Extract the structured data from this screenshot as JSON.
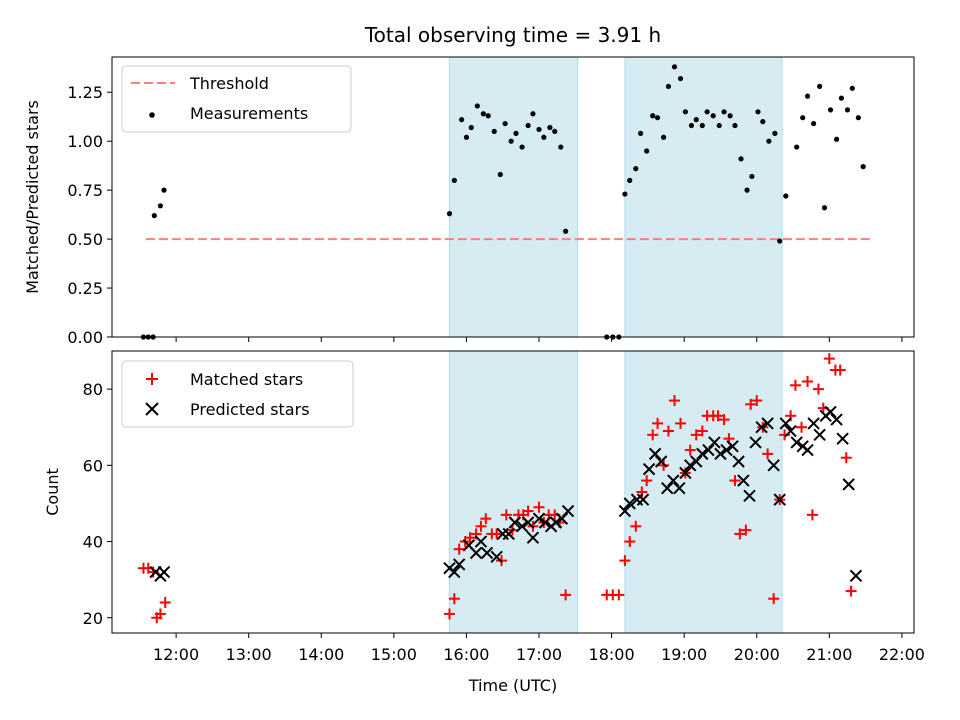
{
  "chart_data": [
    {
      "type": "scatter",
      "title": "Total observing time = 3.91 h",
      "ylabel": "Matched/Predicted stars",
      "xlabel": "",
      "ylim": [
        0,
        1.43
      ],
      "yticks": [
        "0.00",
        "0.25",
        "0.50",
        "0.75",
        "1.00",
        "1.25"
      ],
      "legend": {
        "placement": "upper-left",
        "entries": [
          {
            "key": "threshold",
            "label": "Threshold"
          },
          {
            "key": "measurements",
            "label": "Measurements"
          }
        ]
      },
      "threshold": {
        "value": 0.5,
        "x_start": "11:35",
        "x_end": "21:35",
        "color": "#ff7f7f",
        "style": "dashed"
      },
      "measurements": {
        "color": "#000000",
        "points": [
          [
            "11:33",
            0.0
          ],
          [
            "11:37",
            0.0
          ],
          [
            "11:41",
            0.0
          ],
          [
            "11:42",
            0.62
          ],
          [
            "11:47",
            0.67
          ],
          [
            "11:50",
            0.75
          ],
          [
            "15:46",
            0.63
          ],
          [
            "15:50",
            0.8
          ],
          [
            "15:56",
            1.11
          ],
          [
            "16:00",
            1.02
          ],
          [
            "16:04",
            1.07
          ],
          [
            "16:09",
            1.18
          ],
          [
            "16:14",
            1.14
          ],
          [
            "16:18",
            1.13
          ],
          [
            "16:23",
            1.05
          ],
          [
            "16:28",
            0.83
          ],
          [
            "16:32",
            1.09
          ],
          [
            "16:37",
            1.0
          ],
          [
            "16:41",
            1.04
          ],
          [
            "16:46",
            0.97
          ],
          [
            "16:51",
            1.08
          ],
          [
            "16:55",
            1.14
          ],
          [
            "17:00",
            1.06
          ],
          [
            "17:04",
            1.02
          ],
          [
            "17:09",
            1.07
          ],
          [
            "17:13",
            1.05
          ],
          [
            "17:18",
            0.97
          ],
          [
            "17:22",
            0.54
          ],
          [
            "17:56",
            0.0
          ],
          [
            "18:01",
            0.0
          ],
          [
            "18:06",
            0.0
          ],
          [
            "18:11",
            0.73
          ],
          [
            "18:15",
            0.8
          ],
          [
            "18:20",
            0.86
          ],
          [
            "18:24",
            1.04
          ],
          [
            "18:29",
            0.95
          ],
          [
            "18:34",
            1.13
          ],
          [
            "18:38",
            1.12
          ],
          [
            "18:43",
            1.02
          ],
          [
            "18:47",
            1.28
          ],
          [
            "18:52",
            1.38
          ],
          [
            "18:57",
            1.32
          ],
          [
            "19:01",
            1.15
          ],
          [
            "19:06",
            1.08
          ],
          [
            "19:10",
            1.11
          ],
          [
            "19:15",
            1.08
          ],
          [
            "19:19",
            1.15
          ],
          [
            "19:24",
            1.13
          ],
          [
            "19:29",
            1.08
          ],
          [
            "19:33",
            1.15
          ],
          [
            "19:38",
            1.13
          ],
          [
            "19:42",
            1.08
          ],
          [
            "19:47",
            0.91
          ],
          [
            "19:52",
            0.75
          ],
          [
            "19:56",
            0.82
          ],
          [
            "20:01",
            1.15
          ],
          [
            "20:05",
            1.1
          ],
          [
            "20:10",
            1.0
          ],
          [
            "20:15",
            1.04
          ],
          [
            "20:19",
            0.49
          ],
          [
            "20:24",
            0.72
          ],
          [
            "20:33",
            0.97
          ],
          [
            "20:38",
            1.12
          ],
          [
            "20:42",
            1.23
          ],
          [
            "20:47",
            1.09
          ],
          [
            "20:52",
            1.28
          ],
          [
            "20:56",
            0.66
          ],
          [
            "21:01",
            1.16
          ],
          [
            "21:06",
            1.01
          ],
          [
            "21:10",
            1.22
          ],
          [
            "21:15",
            1.16
          ],
          [
            "21:19",
            1.27
          ],
          [
            "21:24",
            1.12
          ],
          [
            "21:28",
            0.87
          ]
        ]
      }
    },
    {
      "type": "scatter",
      "title": "",
      "ylabel": "Count",
      "xlabel": "Time (UTC)",
      "ylim": [
        16,
        90
      ],
      "yticks": [
        "20",
        "40",
        "60",
        "80"
      ],
      "legend": {
        "placement": "upper-left",
        "entries": [
          {
            "key": "matched",
            "label": "Matched stars"
          },
          {
            "key": "predicted",
            "label": "Predicted stars"
          }
        ]
      },
      "series": [
        {
          "name": "Matched stars",
          "key": "matched",
          "marker": "+",
          "color": "#ff0000",
          "points": [
            [
              "11:33",
              33
            ],
            [
              "11:37",
              33
            ],
            [
              "11:41",
              32
            ],
            [
              "11:44",
              20
            ],
            [
              "11:47",
              21
            ],
            [
              "11:51",
              24
            ],
            [
              "15:46",
              21
            ],
            [
              "15:50",
              25
            ],
            [
              "15:54",
              38
            ],
            [
              "15:59",
              40
            ],
            [
              "16:03",
              41
            ],
            [
              "16:08",
              42
            ],
            [
              "16:12",
              44
            ],
            [
              "16:16",
              46
            ],
            [
              "16:21",
              42
            ],
            [
              "16:25",
              42
            ],
            [
              "16:29",
              35
            ],
            [
              "16:33",
              47
            ],
            [
              "16:38",
              43
            ],
            [
              "16:43",
              47
            ],
            [
              "16:47",
              47
            ],
            [
              "16:51",
              48
            ],
            [
              "16:55",
              44
            ],
            [
              "17:00",
              49
            ],
            [
              "17:04",
              45
            ],
            [
              "17:08",
              47
            ],
            [
              "17:13",
              47
            ],
            [
              "17:17",
              45
            ],
            [
              "17:22",
              26
            ],
            [
              "17:56",
              26
            ],
            [
              "18:01",
              26
            ],
            [
              "18:06",
              26
            ],
            [
              "18:11",
              35
            ],
            [
              "18:15",
              40
            ],
            [
              "18:20",
              44
            ],
            [
              "18:25",
              53
            ],
            [
              "18:29",
              56
            ],
            [
              "18:34",
              68
            ],
            [
              "18:38",
              71
            ],
            [
              "18:43",
              60
            ],
            [
              "18:47",
              69
            ],
            [
              "18:52",
              77
            ],
            [
              "18:57",
              71
            ],
            [
              "19:01",
              58
            ],
            [
              "19:05",
              64
            ],
            [
              "19:10",
              68
            ],
            [
              "19:15",
              69
            ],
            [
              "19:19",
              73
            ],
            [
              "19:24",
              73
            ],
            [
              "19:28",
              73
            ],
            [
              "19:33",
              72
            ],
            [
              "19:37",
              67
            ],
            [
              "19:42",
              56
            ],
            [
              "19:46",
              42
            ],
            [
              "19:51",
              43
            ],
            [
              "19:55",
              76
            ],
            [
              "20:00",
              77
            ],
            [
              "20:05",
              70
            ],
            [
              "20:09",
              63
            ],
            [
              "20:14",
              25
            ],
            [
              "20:19",
              51
            ],
            [
              "20:23",
              68
            ],
            [
              "20:28",
              73
            ],
            [
              "20:32",
              81
            ],
            [
              "20:37",
              70
            ],
            [
              "20:42",
              82
            ],
            [
              "20:46",
              47
            ],
            [
              "20:51",
              80
            ],
            [
              "20:55",
              75
            ],
            [
              "21:00",
              88
            ],
            [
              "21:05",
              85
            ],
            [
              "21:09",
              85
            ],
            [
              "21:14",
              62
            ],
            [
              "21:18",
              27
            ]
          ]
        },
        {
          "name": "Predicted stars",
          "key": "predicted",
          "marker": "x",
          "color": "#000000",
          "points": [
            [
              "11:43",
              32
            ],
            [
              "11:47",
              31
            ],
            [
              "11:50",
              32
            ],
            [
              "15:46",
              33
            ],
            [
              "15:50",
              32
            ],
            [
              "15:54",
              34
            ],
            [
              "16:02",
              39
            ],
            [
              "16:08",
              37
            ],
            [
              "16:12",
              40
            ],
            [
              "16:17",
              37
            ],
            [
              "16:25",
              36
            ],
            [
              "16:30",
              42
            ],
            [
              "16:35",
              42
            ],
            [
              "16:40",
              45
            ],
            [
              "16:46",
              44
            ],
            [
              "16:51",
              45
            ],
            [
              "16:55",
              41
            ],
            [
              "17:00",
              46
            ],
            [
              "17:05",
              45
            ],
            [
              "17:10",
              44
            ],
            [
              "17:14",
              45
            ],
            [
              "17:19",
              46
            ],
            [
              "17:24",
              48
            ],
            [
              "18:11",
              48
            ],
            [
              "18:15",
              50
            ],
            [
              "18:21",
              51
            ],
            [
              "18:26",
              51
            ],
            [
              "18:31",
              59
            ],
            [
              "18:36",
              63
            ],
            [
              "18:41",
              61
            ],
            [
              "18:46",
              54
            ],
            [
              "18:51",
              56
            ],
            [
              "18:56",
              54
            ],
            [
              "19:01",
              58
            ],
            [
              "19:05",
              60
            ],
            [
              "19:10",
              61
            ],
            [
              "19:15",
              63
            ],
            [
              "19:20",
              64
            ],
            [
              "19:25",
              66
            ],
            [
              "19:30",
              63
            ],
            [
              "19:35",
              64
            ],
            [
              "19:40",
              65
            ],
            [
              "19:45",
              61
            ],
            [
              "19:49",
              56
            ],
            [
              "19:54",
              52
            ],
            [
              "19:59",
              66
            ],
            [
              "20:04",
              70
            ],
            [
              "20:09",
              71
            ],
            [
              "20:14",
              60
            ],
            [
              "20:19",
              51
            ],
            [
              "20:24",
              71
            ],
            [
              "20:28",
              69
            ],
            [
              "20:33",
              66
            ],
            [
              "20:38",
              65
            ],
            [
              "20:42",
              64
            ],
            [
              "20:47",
              71
            ],
            [
              "20:52",
              68
            ],
            [
              "20:57",
              73
            ],
            [
              "21:01",
              74
            ],
            [
              "21:06",
              72
            ],
            [
              "21:11",
              67
            ],
            [
              "21:16",
              55
            ],
            [
              "21:22",
              31
            ]
          ]
        }
      ]
    }
  ],
  "shared_x": {
    "type": "time",
    "xlim": [
      "11:07",
      "22:10"
    ],
    "ticks": [
      "12:00",
      "13:00",
      "14:00",
      "15:00",
      "16:00",
      "17:00",
      "18:00",
      "19:00",
      "20:00",
      "21:00",
      "22:00"
    ]
  },
  "observing_windows": {
    "color": "#add8e6",
    "windows": [
      [
        "15:46",
        "17:32"
      ],
      [
        "18:11",
        "20:21"
      ]
    ]
  }
}
